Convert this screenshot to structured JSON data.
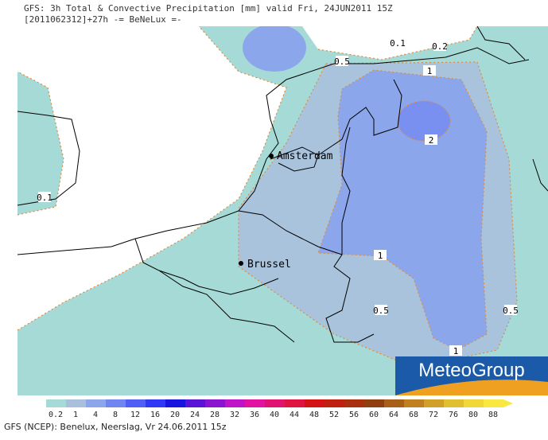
{
  "header": {
    "title": "GFS: 3h Total & Convective Precipitation [mm] valid Fri, 24JUN2011 15Z",
    "subtitle": "[2011062312]+27h -= BeNeLux =-"
  },
  "contour_labels": [
    "0.1",
    "0.2",
    "0.5",
    "1",
    "2",
    "1",
    "0.5",
    "0.5",
    "1",
    "0.1"
  ],
  "cities": [
    "Amsterdam",
    "Brussel"
  ],
  "logo": "MeteoGroup",
  "legend": {
    "labels": [
      "0.2",
      "1",
      "4",
      "8",
      "12",
      "16",
      "20",
      "24",
      "28",
      "32",
      "36",
      "40",
      "44",
      "48",
      "52",
      "56",
      "60",
      "64",
      "68",
      "72",
      "76",
      "80",
      "88"
    ],
    "colors": [
      "#a6dad6",
      "#a9bfdc",
      "#8ca6ec",
      "#6f86f0",
      "#4f5ef5",
      "#2f38f5",
      "#1a14e0",
      "#5a14d8",
      "#8a14d0",
      "#c014c8",
      "#e014a0",
      "#e01470",
      "#e01440",
      "#d41414",
      "#c02010",
      "#a83010",
      "#904010",
      "#a86018",
      "#c08020",
      "#d0a028",
      "#e0c030",
      "#f0d838",
      "#f8e840"
    ]
  },
  "footer": "GFS (NCEP): Benelux, Neerslag, Vr 24.06.2011 15z"
}
